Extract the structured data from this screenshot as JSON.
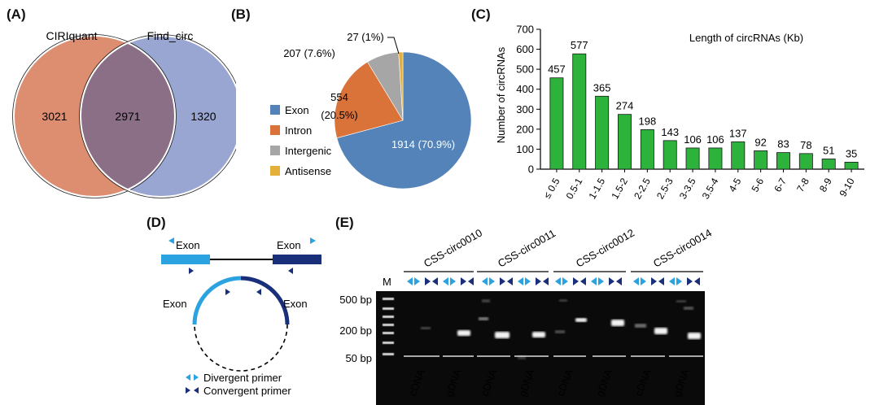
{
  "panels": {
    "a": "(A)",
    "b": "(B)",
    "c": "(C)",
    "d": "(D)",
    "e": "(E)"
  },
  "venn": {
    "left_label": "CIRIquant",
    "right_label": "Find_circ",
    "left_only": "3021",
    "overlap": "2971",
    "right_only": "1320",
    "left_color": "#dd8e70",
    "right_color": "#98a6d1",
    "overlap_color": "#8b6f86"
  },
  "chart_data": [
    {
      "type": "pie",
      "slices": [
        {
          "label": "Exon",
          "value": 1914,
          "percent": 70.9,
          "text": "1914 (70.9%)",
          "color": "#5383b8"
        },
        {
          "label": "Intron",
          "value": 554,
          "percent": 20.5,
          "text_value": "554",
          "text_pct": "(20.5%)",
          "color": "#d9733a"
        },
        {
          "label": "Intergenic",
          "value": 207,
          "percent": 7.6,
          "text": "207 (7.6%)",
          "color": "#a6a6a6"
        },
        {
          "label": "Antisense",
          "value": 27,
          "percent": 1.0,
          "text": "27 (1%)",
          "color": "#e3b13a"
        }
      ]
    },
    {
      "type": "bar",
      "title": "Length of circRNAs (Kb)",
      "ylabel": "Number of circRNAs",
      "xlabel": "",
      "ylim": [
        0,
        700
      ],
      "yticks": [
        0,
        100,
        200,
        300,
        400,
        500,
        600,
        700
      ],
      "categories": [
        "≤ 0.5",
        "0.5-1",
        "1-1.5",
        "1.5-2",
        "2-2.5",
        "2.5-3",
        "3-3.5",
        "3.5-4",
        "4-5",
        "5-6",
        "6-7",
        "7-8",
        "8-9",
        "9-10"
      ],
      "values": [
        457,
        577,
        365,
        274,
        198,
        143,
        106,
        106,
        137,
        92,
        83,
        78,
        51,
        35
      ],
      "bar_color": "#2db33c"
    }
  ],
  "diagram": {
    "exon_left": "Exon",
    "exon_right": "Exon",
    "circ_exon_left": "Exon",
    "circ_exon_right": "Exon",
    "legend_divergent": "Divergent primer",
    "legend_convergent": "Convergent primer",
    "light_blue": "#2aa3e0",
    "dark_blue": "#1a2f7a"
  },
  "gel": {
    "ladder_label": "M",
    "sizes": [
      "500 bp",
      "200 bp",
      "50 bp"
    ],
    "samples": [
      "CSS-circ0010",
      "CSS-circ0011",
      "CSS-circ0012",
      "CSS-circ0014"
    ],
    "bottom_labels": [
      "cDNA",
      "gDNA",
      "cDNA",
      "gDNA",
      "cDNA",
      "gDNA",
      "cDNA",
      "gDNA"
    ]
  }
}
